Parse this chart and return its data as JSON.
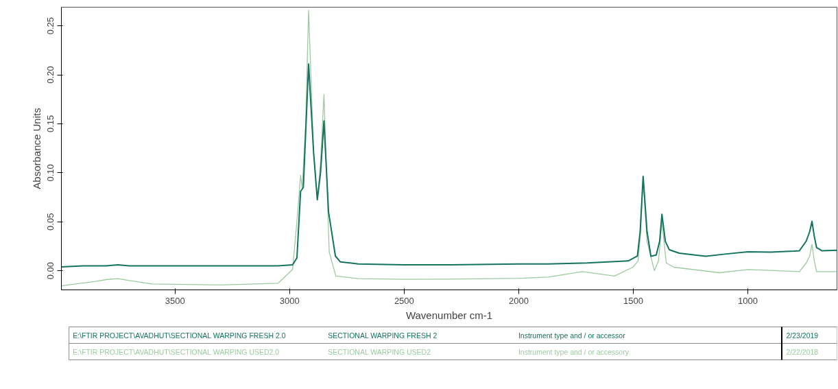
{
  "chart_data": {
    "type": "line",
    "xlabel": "Wavenumber cm-1",
    "ylabel": "Absorbance Units",
    "xlim": [
      3996,
      611
    ],
    "ylim": [
      -0.0195,
      0.269
    ],
    "xticks": [
      3500,
      3000,
      2500,
      2000,
      1500,
      1000
    ],
    "yticks": [
      {
        "value": 0,
        "label": "0.00"
      },
      {
        "value": 0.05,
        "label": "0.05"
      },
      {
        "value": 0.1,
        "label": "0.10"
      },
      {
        "value": 0.15,
        "label": "0.15"
      },
      {
        "value": 0.2,
        "label": "0.20"
      },
      {
        "value": 0.25,
        "label": "0.25"
      }
    ],
    "grid": false,
    "legend": "bottom",
    "marker": "none",
    "line_style": "solid",
    "series": [
      {
        "name": "E:\\FTIR PROJECT\\AVADHUT\\SECTIONAL WARPING FRESH 2.0",
        "color": "#13735e",
        "x": [
          3996,
          3900,
          3800,
          3750,
          3700,
          3600,
          3400,
          3200,
          3050,
          2987,
          2968,
          2952,
          2940,
          2917,
          2895,
          2879,
          2865,
          2850,
          2830,
          2800,
          2778,
          2700,
          2500,
          2300,
          2000,
          1871,
          1700,
          1522,
          1482,
          1470,
          1457,
          1440,
          1423,
          1400,
          1385,
          1375,
          1360,
          1343,
          1300,
          1183,
          1100,
          1000,
          900,
          800,
          775,
          745,
          730,
          720,
          710,
          700,
          676,
          611
        ],
        "values": [
          0.004,
          0.005,
          0.005,
          0.006,
          0.005,
          0.005,
          0.005,
          0.005,
          0.005,
          0.006,
          0.013,
          0.081,
          0.085,
          0.211,
          0.12,
          0.0725,
          0.1,
          0.153,
          0.06,
          0.015,
          0.009,
          0.007,
          0.006,
          0.006,
          0.007,
          0.007,
          0.008,
          0.01,
          0.015,
          0.04,
          0.0964,
          0.04,
          0.0148,
          0.016,
          0.03,
          0.0577,
          0.03,
          0.0215,
          0.018,
          0.0148,
          0.017,
          0.0193,
          0.019,
          0.02,
          0.0204,
          0.0304,
          0.04,
          0.0505,
          0.035,
          0.0237,
          0.0204,
          0.021
        ]
      },
      {
        "name": "E:\\FTIR PROJECT\\AVADHUT\\SECTIONAL WARPING USED2.0",
        "color": "#9ccaa0",
        "x": [
          3996,
          3933,
          3850,
          3800,
          3750,
          3700,
          3600,
          3300,
          3050,
          2987,
          2967,
          2952,
          2945,
          2930,
          2917,
          2895,
          2879,
          2865,
          2850,
          2827,
          2798,
          2700,
          2500,
          2300,
          2000,
          1871,
          1722,
          1582,
          1502,
          1479,
          1468,
          1457,
          1440,
          1408,
          1390,
          1375,
          1356,
          1322,
          1124,
          1000,
          775,
          745,
          730,
          720,
          710,
          700,
          611
        ],
        "values": [
          -0.0154,
          -0.0134,
          -0.011,
          -0.009,
          -0.008,
          -0.01,
          -0.0134,
          -0.0145,
          -0.0127,
          0.0013,
          0.053,
          0.0975,
          0.084,
          0.15,
          0.266,
          0.12,
          0.0725,
          0.11,
          0.18,
          0.019,
          -0.0054,
          -0.008,
          -0.0087,
          -0.0085,
          -0.0077,
          -0.0065,
          -0.0009,
          -0.0054,
          0.0036,
          0.01,
          0.04,
          0.093,
          0.03,
          0.0002,
          0.01,
          0.05,
          0.008,
          0.0036,
          -0.002,
          0.0013,
          -0.0009,
          0.008,
          0.015,
          0.027,
          0.01,
          -0.0009,
          -0.0009
        ]
      }
    ],
    "annotations": [
      "SECTIONAL WARPING FRESH 2",
      "Instrument type and / or accessor",
      "2/23/2019",
      "SECTIONAL WARPING USED2",
      "Instrument type and / or accessory",
      "2/22/2018"
    ]
  }
}
